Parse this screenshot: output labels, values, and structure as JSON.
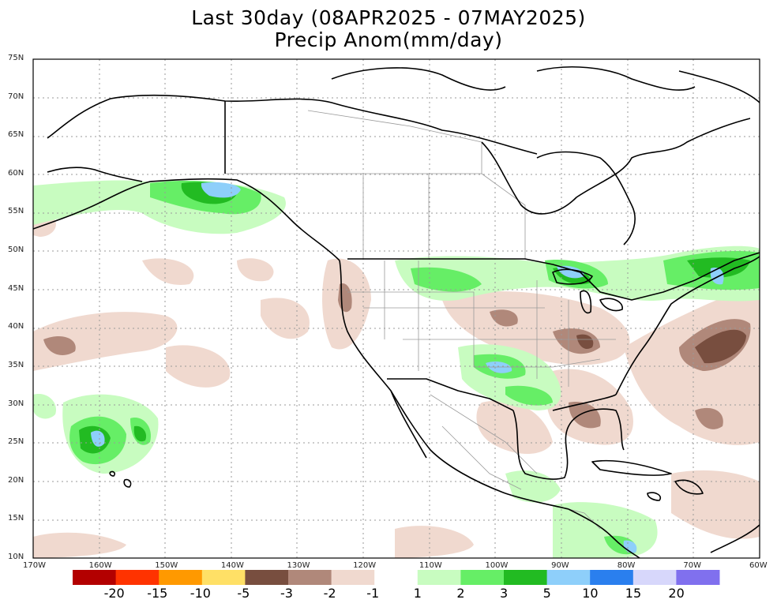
{
  "title": {
    "line1": "Last 30day (08APR2025 - 07MAY2025)",
    "line2": "Precip Anom(mm/day)"
  },
  "lat_labels": [
    "75N",
    "70N",
    "65N",
    "60N",
    "55N",
    "50N",
    "45N",
    "40N",
    "35N",
    "30N",
    "25N",
    "20N",
    "15N",
    "10N"
  ],
  "lon_labels": [
    "170W",
    "160W",
    "150W",
    "140W",
    "130W",
    "120W",
    "110W",
    "100W",
    "90W",
    "80W",
    "70W",
    "60W"
  ],
  "colorbar": {
    "labels": [
      "-20",
      "-15",
      "-10",
      "-5",
      "-3",
      "-2",
      "-1",
      "1",
      "2",
      "3",
      "5",
      "10",
      "15",
      "20"
    ],
    "colors": [
      "#b30000",
      "#ff3300",
      "#ff9900",
      "#ffe066",
      "#784e3f",
      "#b0887a",
      "#f0d9cf",
      "#ffffff",
      "#c8fcc0",
      "#66ee66",
      "#22bb22",
      "#8ecffa",
      "#2a7fee",
      "#d7d7fb",
      "#8070ee"
    ]
  },
  "map_extent": {
    "lon": [
      -170,
      -60
    ],
    "lat": [
      10,
      75
    ]
  },
  "map_colors": {
    "coast": "#000000",
    "borders": "#9a9a9a",
    "gridlines": "#9a9a9a"
  }
}
